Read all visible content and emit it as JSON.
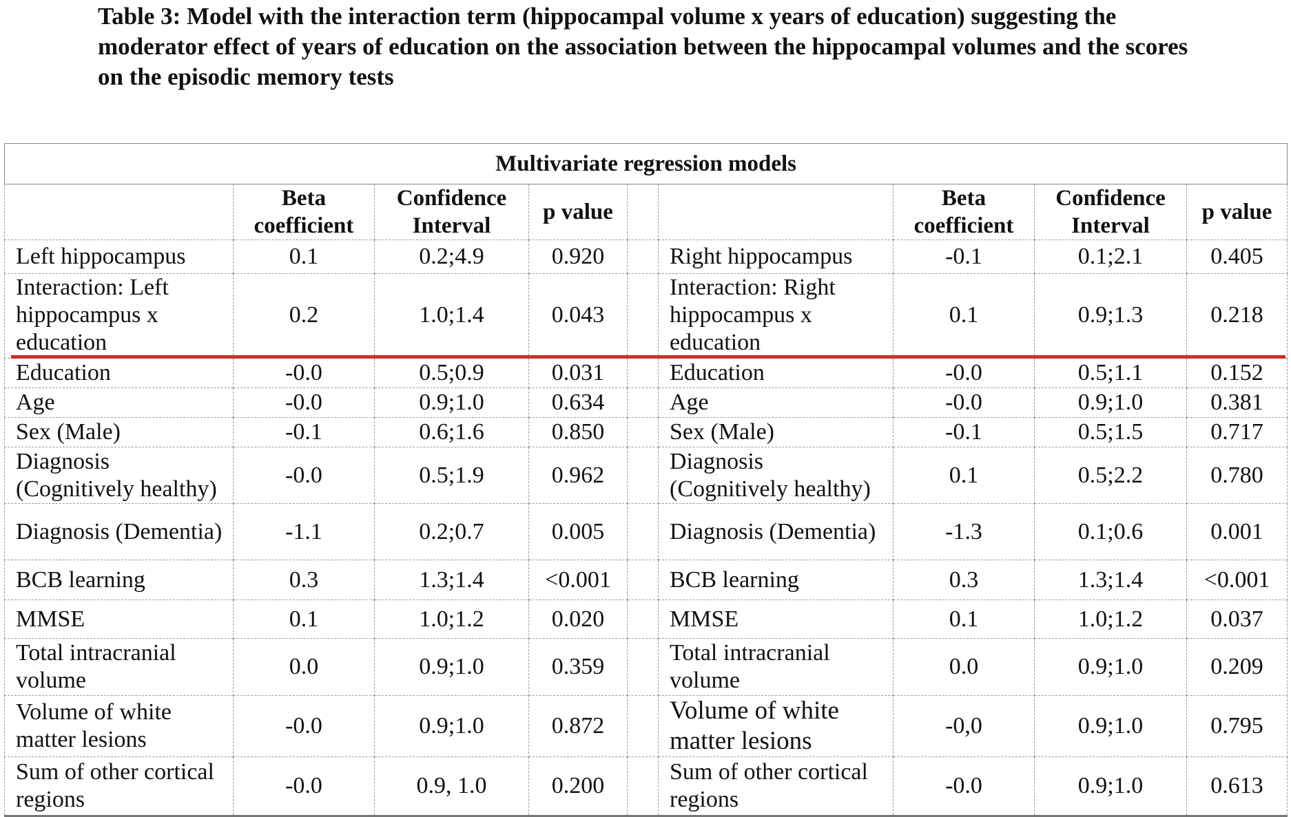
{
  "title": "Table 3: Model with the interaction term (hippocampal volume x years of education) suggesting the moderator effect of years of education on the association between the hippocampal volumes and the scores on the episodic memory tests",
  "table": {
    "group_header": "Multivariate regression models",
    "columns": {
      "beta": "Beta coefficient",
      "ci": "Confidence Interval",
      "p": "p value"
    },
    "left_rows": [
      {
        "label": "Left hippocampus",
        "beta": "0.1",
        "ci": "0.2;4.9",
        "p": "0.920"
      },
      {
        "label": "Interaction: Left hippocampus x education",
        "beta": "0.2",
        "ci": "1.0;1.4",
        "p": "0.043"
      },
      {
        "label": "Education",
        "beta": "-0.0",
        "ci": "0.5;0.9",
        "p": "0.031"
      },
      {
        "label": "Age",
        "beta": "-0.0",
        "ci": "0.9;1.0",
        "p": "0.634"
      },
      {
        "label": "Sex (Male)",
        "beta": "-0.1",
        "ci": "0.6;1.6",
        "p": "0.850"
      },
      {
        "label": "Diagnosis (Cognitively healthy)",
        "beta": "-0.0",
        "ci": "0.5;1.9",
        "p": "0.962"
      },
      {
        "label": "Diagnosis (Dementia)",
        "beta": "-1.1",
        "ci": "0.2;0.7",
        "p": "0.005"
      },
      {
        "label": "BCB learning",
        "beta": "0.3",
        "ci": "1.3;1.4",
        "p": "<0.001"
      },
      {
        "label": "MMSE",
        "beta": "0.1",
        "ci": "1.0;1.2",
        "p": "0.020"
      },
      {
        "label": "Total intracranial volume",
        "beta": "0.0",
        "ci": "0.9;1.0",
        "p": "0.359"
      },
      {
        "label": "Volume of white matter lesions",
        "beta": "-0.0",
        "ci": "0.9;1.0",
        "p": "0.872"
      },
      {
        "label": "Sum of other cortical regions",
        "beta": "-0.0",
        "ci": "0.9, 1.0",
        "p": "0.200"
      }
    ],
    "right_rows": [
      {
        "label": "Right hippocampus",
        "beta": "-0.1",
        "ci": "0.1;2.1",
        "p": "0.405"
      },
      {
        "label": "Interaction: Right hippocampus x education",
        "beta": "0.1",
        "ci": "0.9;1.3",
        "p": "0.218"
      },
      {
        "label": "Education",
        "beta": "-0.0",
        "ci": "0.5;1.1",
        "p": "0.152"
      },
      {
        "label": "Age",
        "beta": "-0.0",
        "ci": "0.9;1.0",
        "p": "0.381"
      },
      {
        "label": "Sex (Male)",
        "beta": "-0.1",
        "ci": "0.5;1.5",
        "p": "0.717"
      },
      {
        "label": "Diagnosis (Cognitively healthy)",
        "beta": "0.1",
        "ci": "0.5;2.2",
        "p": "0.780"
      },
      {
        "label": "Diagnosis (Dementia)",
        "beta": "-1.3",
        "ci": "0.1;0.6",
        "p": "0.001"
      },
      {
        "label": "BCB learning",
        "beta": "0.3",
        "ci": "1.3;1.4",
        "p": "<0.001"
      },
      {
        "label": "MMSE",
        "beta": "0.1",
        "ci": "1.0;1.2",
        "p": "0.037"
      },
      {
        "label": "Total intracranial volume",
        "beta": "0.0",
        "ci": "0.9;1.0",
        "p": "0.209"
      },
      {
        "label": "Volume of white matter lesions",
        "beta": "-0,0",
        "ci": "0.9;1.0",
        "p": "0.795"
      },
      {
        "label": "Sum of other cortical regions",
        "beta": "-0.0",
        "ci": "0.9;1.0",
        "p": "0.613"
      }
    ]
  },
  "colors": {
    "highlight_line": "#c9302c",
    "border": "#9a9a9a"
  }
}
